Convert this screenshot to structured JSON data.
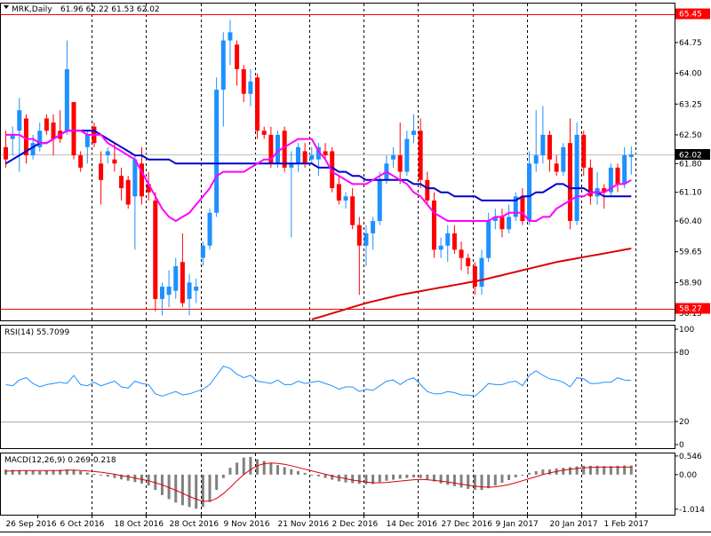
{
  "window": {
    "symbol_label": "MRK,Daily",
    "ohlc_label": "61.96 62.22 61.53 62.02"
  },
  "colors": {
    "background": "#ffffff",
    "frame": "#000000",
    "grid": "#000000",
    "bull_candle": "#1e90ff",
    "bear_candle": "#ff0000",
    "ma_fast": "#ff00ff",
    "ma_mid": "#0000cd",
    "ma_slow": "#dd0000",
    "level_line": "#ff0000",
    "rsi_line": "#1e90ff",
    "rsi_level": "#a9a9a9",
    "macd_hist": "#808080",
    "macd_signal": "#dd0000",
    "price_tag_bg": "#000000",
    "level_tag_bg": "#ff0000",
    "tag_text": "#ffffff"
  },
  "chart_data": [
    {
      "type": "candlestick",
      "name": "price",
      "y_ticks": [
        "64.75",
        "64.00",
        "63.25",
        "62.50",
        "61.80",
        "61.10",
        "60.40",
        "59.65",
        "58.90",
        "58.15"
      ],
      "ylim": [
        58.0,
        65.7
      ],
      "current_price": "62.02",
      "level_lines": [
        "65.45",
        "58.27"
      ],
      "x_tick_labels": [
        "26 Sep 2016",
        "6 Oct 2016",
        "18 Oct 2016",
        "28 Oct 2016",
        "9 Nov 2016",
        "21 Nov 2016",
        "2 Dec 2016",
        "14 Dec 2016",
        "27 Dec 2016",
        "9 Jan 2017",
        "20 Jan 2017",
        "1 Feb 2017"
      ],
      "x_tick_index": [
        0,
        8,
        16,
        24,
        32,
        40,
        48,
        56,
        64,
        72,
        80,
        88
      ],
      "candles": [
        {
          "o": 62.2,
          "h": 62.6,
          "l": 61.7,
          "c": 61.9
        },
        {
          "o": 62.4,
          "h": 62.7,
          "l": 62.0,
          "c": 62.5
        },
        {
          "o": 62.6,
          "h": 63.4,
          "l": 61.6,
          "c": 63.1
        },
        {
          "o": 62.9,
          "h": 63.0,
          "l": 61.8,
          "c": 62.0
        },
        {
          "o": 62.0,
          "h": 62.5,
          "l": 61.9,
          "c": 62.3
        },
        {
          "o": 62.2,
          "h": 62.8,
          "l": 62.1,
          "c": 62.6
        },
        {
          "o": 62.9,
          "h": 63.0,
          "l": 62.5,
          "c": 62.6
        },
        {
          "o": 62.8,
          "h": 63.0,
          "l": 62.0,
          "c": 62.4
        },
        {
          "o": 62.6,
          "h": 63.1,
          "l": 62.3,
          "c": 62.4
        },
        {
          "o": 62.6,
          "h": 64.8,
          "l": 62.5,
          "c": 64.1
        },
        {
          "o": 63.3,
          "h": 63.3,
          "l": 61.9,
          "c": 62.0
        },
        {
          "o": 62.0,
          "h": 62.1,
          "l": 61.6,
          "c": 61.7
        },
        {
          "o": 62.2,
          "h": 62.6,
          "l": 61.8,
          "c": 62.5
        },
        {
          "o": 62.7,
          "h": 62.8,
          "l": 62.2,
          "c": 62.3
        },
        {
          "o": 61.8,
          "h": 62.1,
          "l": 60.8,
          "c": 61.4
        },
        {
          "o": 62.0,
          "h": 62.2,
          "l": 61.8,
          "c": 62.1
        },
        {
          "o": 61.9,
          "h": 62.3,
          "l": 61.6,
          "c": 61.8
        },
        {
          "o": 61.5,
          "h": 61.7,
          "l": 60.9,
          "c": 61.2
        },
        {
          "o": 61.4,
          "h": 61.5,
          "l": 60.7,
          "c": 60.8
        },
        {
          "o": 61.0,
          "h": 62.0,
          "l": 59.7,
          "c": 61.9
        },
        {
          "o": 61.8,
          "h": 62.2,
          "l": 60.8,
          "c": 61.0
        },
        {
          "o": 61.3,
          "h": 61.6,
          "l": 60.9,
          "c": 61.1
        },
        {
          "o": 60.9,
          "h": 61.1,
          "l": 58.2,
          "c": 58.5
        },
        {
          "o": 58.5,
          "h": 58.9,
          "l": 58.1,
          "c": 58.8
        },
        {
          "o": 58.6,
          "h": 59.2,
          "l": 58.3,
          "c": 58.8
        },
        {
          "o": 58.7,
          "h": 59.5,
          "l": 58.5,
          "c": 59.3
        },
        {
          "o": 59.4,
          "h": 60.1,
          "l": 58.3,
          "c": 58.4
        },
        {
          "o": 58.5,
          "h": 59.1,
          "l": 58.1,
          "c": 58.9
        },
        {
          "o": 58.7,
          "h": 59.0,
          "l": 58.4,
          "c": 58.8
        },
        {
          "o": 59.5,
          "h": 59.9,
          "l": 59.3,
          "c": 59.8
        },
        {
          "o": 59.8,
          "h": 60.7,
          "l": 59.7,
          "c": 60.6
        },
        {
          "o": 60.6,
          "h": 63.9,
          "l": 60.5,
          "c": 63.6
        },
        {
          "o": 63.6,
          "h": 65.0,
          "l": 62.7,
          "c": 64.8
        },
        {
          "o": 64.8,
          "h": 65.3,
          "l": 64.2,
          "c": 65.0
        },
        {
          "o": 64.7,
          "h": 64.8,
          "l": 63.7,
          "c": 64.1
        },
        {
          "o": 64.1,
          "h": 64.2,
          "l": 63.3,
          "c": 63.5
        },
        {
          "o": 63.5,
          "h": 64.1,
          "l": 63.2,
          "c": 63.8
        },
        {
          "o": 63.9,
          "h": 64.0,
          "l": 62.4,
          "c": 62.6
        },
        {
          "o": 62.6,
          "h": 62.7,
          "l": 62.4,
          "c": 62.5
        },
        {
          "o": 62.5,
          "h": 62.7,
          "l": 61.7,
          "c": 61.8
        },
        {
          "o": 61.8,
          "h": 62.6,
          "l": 61.7,
          "c": 62.5
        },
        {
          "o": 62.6,
          "h": 62.7,
          "l": 61.6,
          "c": 61.7
        },
        {
          "o": 61.7,
          "h": 62.1,
          "l": 60.0,
          "c": 61.8
        },
        {
          "o": 61.8,
          "h": 62.3,
          "l": 61.6,
          "c": 62.2
        },
        {
          "o": 62.1,
          "h": 62.3,
          "l": 61.7,
          "c": 61.8
        },
        {
          "o": 61.9,
          "h": 62.2,
          "l": 61.8,
          "c": 62.0
        },
        {
          "o": 61.9,
          "h": 62.3,
          "l": 61.5,
          "c": 62.2
        },
        {
          "o": 62.1,
          "h": 62.3,
          "l": 61.9,
          "c": 62.0
        },
        {
          "o": 62.1,
          "h": 62.2,
          "l": 61.1,
          "c": 61.2
        },
        {
          "o": 61.3,
          "h": 61.5,
          "l": 60.8,
          "c": 60.9
        },
        {
          "o": 60.9,
          "h": 61.1,
          "l": 60.7,
          "c": 61.0
        },
        {
          "o": 61.0,
          "h": 61.2,
          "l": 60.2,
          "c": 60.3
        },
        {
          "o": 60.3,
          "h": 60.5,
          "l": 58.6,
          "c": 59.8
        },
        {
          "o": 59.8,
          "h": 60.3,
          "l": 59.3,
          "c": 60.1
        },
        {
          "o": 60.1,
          "h": 60.5,
          "l": 59.7,
          "c": 60.4
        },
        {
          "o": 60.4,
          "h": 61.6,
          "l": 60.3,
          "c": 61.4
        },
        {
          "o": 61.4,
          "h": 62.0,
          "l": 61.3,
          "c": 61.8
        },
        {
          "o": 61.9,
          "h": 62.2,
          "l": 61.7,
          "c": 62.0
        },
        {
          "o": 62.0,
          "h": 62.8,
          "l": 61.3,
          "c": 61.6
        },
        {
          "o": 61.6,
          "h": 62.6,
          "l": 61.5,
          "c": 62.4
        },
        {
          "o": 62.5,
          "h": 63.0,
          "l": 62.3,
          "c": 62.6
        },
        {
          "o": 62.6,
          "h": 62.9,
          "l": 61.2,
          "c": 61.4
        },
        {
          "o": 61.4,
          "h": 61.6,
          "l": 60.8,
          "c": 60.9
        },
        {
          "o": 60.9,
          "h": 61.1,
          "l": 59.5,
          "c": 59.7
        },
        {
          "o": 59.7,
          "h": 60.0,
          "l": 59.5,
          "c": 59.8
        },
        {
          "o": 59.8,
          "h": 60.3,
          "l": 59.4,
          "c": 60.1
        },
        {
          "o": 60.1,
          "h": 60.3,
          "l": 59.6,
          "c": 59.7
        },
        {
          "o": 59.7,
          "h": 59.9,
          "l": 59.2,
          "c": 59.5
        },
        {
          "o": 59.5,
          "h": 59.6,
          "l": 59.1,
          "c": 59.3
        },
        {
          "o": 59.3,
          "h": 59.4,
          "l": 58.6,
          "c": 58.8
        },
        {
          "o": 58.8,
          "h": 59.7,
          "l": 58.6,
          "c": 59.5
        },
        {
          "o": 59.5,
          "h": 60.6,
          "l": 59.4,
          "c": 60.4
        },
        {
          "o": 60.4,
          "h": 60.7,
          "l": 60.2,
          "c": 60.5
        },
        {
          "o": 60.5,
          "h": 60.7,
          "l": 60.0,
          "c": 60.2
        },
        {
          "o": 60.2,
          "h": 60.8,
          "l": 60.1,
          "c": 60.5
        },
        {
          "o": 60.5,
          "h": 61.1,
          "l": 60.4,
          "c": 61.0
        },
        {
          "o": 61.0,
          "h": 61.2,
          "l": 60.3,
          "c": 60.4
        },
        {
          "o": 60.4,
          "h": 62.1,
          "l": 60.3,
          "c": 61.8
        },
        {
          "o": 61.8,
          "h": 63.1,
          "l": 61.6,
          "c": 62.0
        },
        {
          "o": 62.0,
          "h": 63.2,
          "l": 61.8,
          "c": 62.5
        },
        {
          "o": 62.5,
          "h": 62.6,
          "l": 61.6,
          "c": 61.9
        },
        {
          "o": 61.8,
          "h": 62.0,
          "l": 61.5,
          "c": 61.6
        },
        {
          "o": 61.6,
          "h": 62.3,
          "l": 61.5,
          "c": 62.2
        },
        {
          "o": 62.3,
          "h": 62.9,
          "l": 60.2,
          "c": 60.4
        },
        {
          "o": 60.4,
          "h": 62.8,
          "l": 60.3,
          "c": 62.5
        },
        {
          "o": 62.5,
          "h": 62.6,
          "l": 61.5,
          "c": 61.7
        },
        {
          "o": 61.7,
          "h": 61.9,
          "l": 60.8,
          "c": 61.0
        },
        {
          "o": 61.0,
          "h": 61.6,
          "l": 60.8,
          "c": 61.2
        },
        {
          "o": 61.2,
          "h": 61.3,
          "l": 60.7,
          "c": 61.1
        },
        {
          "o": 61.1,
          "h": 61.8,
          "l": 61.0,
          "c": 61.7
        },
        {
          "o": 61.7,
          "h": 61.8,
          "l": 61.1,
          "c": 61.3
        },
        {
          "o": 61.3,
          "h": 62.2,
          "l": 61.2,
          "c": 62.0
        },
        {
          "o": 61.96,
          "h": 62.22,
          "l": 61.53,
          "c": 62.02
        }
      ],
      "ma_fast": [
        62.5,
        62.5,
        62.5,
        62.4,
        62.4,
        62.3,
        62.3,
        62.4,
        62.5,
        62.6,
        62.6,
        62.6,
        62.5,
        62.5,
        62.5,
        62.3,
        62.2,
        62.1,
        62.0,
        61.9,
        61.6,
        61.3,
        61.0,
        60.7,
        60.5,
        60.4,
        60.5,
        60.6,
        60.8,
        61.0,
        61.2,
        61.5,
        61.6,
        61.6,
        61.6,
        61.6,
        61.7,
        61.8,
        61.9,
        61.9,
        62.1,
        62.2,
        62.3,
        62.4,
        62.4,
        62.4,
        62.1,
        61.9,
        61.6,
        61.5,
        61.4,
        61.3,
        61.3,
        61.3,
        61.4,
        61.5,
        61.6,
        61.5,
        61.4,
        61.3,
        61.1,
        61.0,
        60.8,
        60.6,
        60.5,
        60.4,
        60.4,
        60.4,
        60.4,
        60.4,
        60.4,
        60.4,
        60.5,
        60.5,
        60.6,
        60.6,
        60.6,
        60.4,
        60.4,
        60.5,
        60.5,
        60.7,
        60.8,
        60.9,
        61.0,
        61.0,
        61.1,
        61.1,
        61.1,
        61.2,
        61.3,
        61.3,
        61.4
      ],
      "ma_mid": [
        61.8,
        61.9,
        62.0,
        62.1,
        62.2,
        62.3,
        62.3,
        62.4,
        62.5,
        62.6,
        62.6,
        62.6,
        62.6,
        62.6,
        62.5,
        62.4,
        62.3,
        62.2,
        62.1,
        62.0,
        62.0,
        61.9,
        61.9,
        61.9,
        61.9,
        61.8,
        61.8,
        61.8,
        61.8,
        61.8,
        61.8,
        61.8,
        61.8,
        61.8,
        61.8,
        61.8,
        61.8,
        61.8,
        61.8,
        61.8,
        61.8,
        61.8,
        61.8,
        61.8,
        61.8,
        61.8,
        61.7,
        61.7,
        61.7,
        61.6,
        61.6,
        61.5,
        61.5,
        61.4,
        61.4,
        61.4,
        61.4,
        61.4,
        61.4,
        61.4,
        61.3,
        61.3,
        61.2,
        61.2,
        61.1,
        61.1,
        61.0,
        61.0,
        61.0,
        61.0,
        60.9,
        60.9,
        60.9,
        60.9,
        60.9,
        60.9,
        61.0,
        61.0,
        61.1,
        61.1,
        61.2,
        61.3,
        61.3,
        61.2,
        61.2,
        61.2,
        61.1,
        61.1,
        61.0,
        61.0,
        61.0,
        61.0,
        61.0
      ],
      "ma_slow": [
        null,
        null,
        null,
        null,
        null,
        null,
        null,
        null,
        null,
        null,
        null,
        null,
        null,
        null,
        null,
        null,
        null,
        null,
        null,
        null,
        null,
        null,
        null,
        null,
        null,
        null,
        null,
        null,
        null,
        null,
        null,
        null,
        null,
        null,
        null,
        null,
        null,
        null,
        null,
        null,
        null,
        null,
        null,
        null,
        null,
        58.0,
        58.05,
        58.1,
        58.15,
        58.2,
        58.25,
        58.3,
        58.35,
        58.4,
        58.44,
        58.48,
        58.52,
        58.56,
        58.6,
        58.63,
        58.66,
        58.69,
        58.72,
        58.75,
        58.78,
        58.81,
        58.84,
        58.87,
        58.9,
        58.93,
        58.96,
        59.0,
        59.04,
        59.08,
        59.12,
        59.16,
        59.2,
        59.24,
        59.28,
        59.32,
        59.36,
        59.4,
        59.43,
        59.46,
        59.49,
        59.52,
        59.55,
        59.58,
        59.61,
        59.64,
        59.67,
        59.7,
        59.73
      ]
    },
    {
      "type": "line",
      "name": "RSI(14) 55.7099",
      "header": "RSI(14) 55.7099",
      "y_ticks": [
        "100",
        "80",
        "20",
        "0"
      ],
      "ylim": [
        0,
        100
      ],
      "levels": [
        80,
        20
      ],
      "values": [
        52,
        51,
        56,
        58,
        53,
        50,
        52,
        53,
        54,
        53,
        60,
        52,
        51,
        54,
        51,
        53,
        55,
        50,
        49,
        55,
        53,
        52,
        44,
        42,
        44,
        46,
        43,
        44,
        46,
        48,
        52,
        60,
        68,
        66,
        61,
        58,
        60,
        55,
        54,
        53,
        56,
        52,
        52,
        55,
        53,
        54,
        55,
        53,
        51,
        48,
        50,
        50,
        46,
        48,
        47,
        51,
        55,
        56,
        52,
        56,
        58,
        52,
        46,
        44,
        44,
        46,
        45,
        43,
        43,
        42,
        47,
        53,
        52,
        52,
        54,
        55,
        51,
        60,
        64,
        60,
        57,
        56,
        54,
        50,
        58,
        57,
        53,
        53,
        54,
        54,
        58,
        56,
        55.7
      ]
    },
    {
      "type": "bar",
      "name": "MACD(12,26,9) 0.269 0.218",
      "header": "MACD(12,26,9) 0.269 0.218",
      "y_ticks": [
        "0.546",
        "0.00",
        "-1.014"
      ],
      "ylim": [
        -1.15,
        0.62
      ],
      "histogram": [
        0.15,
        0.14,
        0.13,
        0.12,
        0.11,
        0.1,
        0.12,
        0.13,
        0.14,
        0.15,
        0.14,
        0.1,
        0.06,
        0.02,
        -0.02,
        -0.06,
        -0.1,
        -0.14,
        -0.18,
        -0.22,
        -0.26,
        -0.32,
        -0.45,
        -0.6,
        -0.72,
        -0.82,
        -0.9,
        -0.95,
        -1.0,
        -0.95,
        -0.8,
        -0.45,
        -0.1,
        0.2,
        0.35,
        0.5,
        0.52,
        0.45,
        0.4,
        0.33,
        0.28,
        0.22,
        0.16,
        0.1,
        0.05,
        0.0,
        -0.05,
        -0.1,
        -0.15,
        -0.2,
        -0.23,
        -0.25,
        -0.27,
        -0.28,
        -0.28,
        -0.22,
        -0.18,
        -0.15,
        -0.12,
        -0.1,
        -0.08,
        -0.1,
        -0.14,
        -0.2,
        -0.26,
        -0.3,
        -0.34,
        -0.38,
        -0.42,
        -0.45,
        -0.45,
        -0.4,
        -0.32,
        -0.24,
        -0.16,
        -0.08,
        -0.02,
        0.05,
        0.1,
        0.15,
        0.15,
        0.18,
        0.2,
        0.22,
        0.24,
        0.26,
        0.26,
        0.26,
        0.25,
        0.25,
        0.26,
        0.27,
        0.269
      ],
      "signal": [
        0.1,
        0.11,
        0.12,
        0.12,
        0.12,
        0.12,
        0.12,
        0.12,
        0.12,
        0.13,
        0.13,
        0.12,
        0.11,
        0.09,
        0.07,
        0.04,
        0.01,
        -0.03,
        -0.06,
        -0.1,
        -0.14,
        -0.18,
        -0.24,
        -0.3,
        -0.38,
        -0.46,
        -0.55,
        -0.64,
        -0.72,
        -0.78,
        -0.78,
        -0.7,
        -0.56,
        -0.38,
        -0.18,
        0.0,
        0.15,
        0.26,
        0.32,
        0.34,
        0.33,
        0.3,
        0.26,
        0.21,
        0.16,
        0.11,
        0.06,
        0.01,
        -0.04,
        -0.08,
        -0.12,
        -0.16,
        -0.19,
        -0.22,
        -0.24,
        -0.24,
        -0.23,
        -0.21,
        -0.19,
        -0.17,
        -0.15,
        -0.14,
        -0.15,
        -0.17,
        -0.19,
        -0.22,
        -0.25,
        -0.28,
        -0.31,
        -0.34,
        -0.36,
        -0.37,
        -0.36,
        -0.33,
        -0.29,
        -0.24,
        -0.18,
        -0.12,
        -0.06,
        0.0,
        0.05,
        0.09,
        0.13,
        0.16,
        0.18,
        0.2,
        0.21,
        0.22,
        0.22,
        0.22,
        0.22,
        0.22,
        0.218
      ]
    }
  ]
}
